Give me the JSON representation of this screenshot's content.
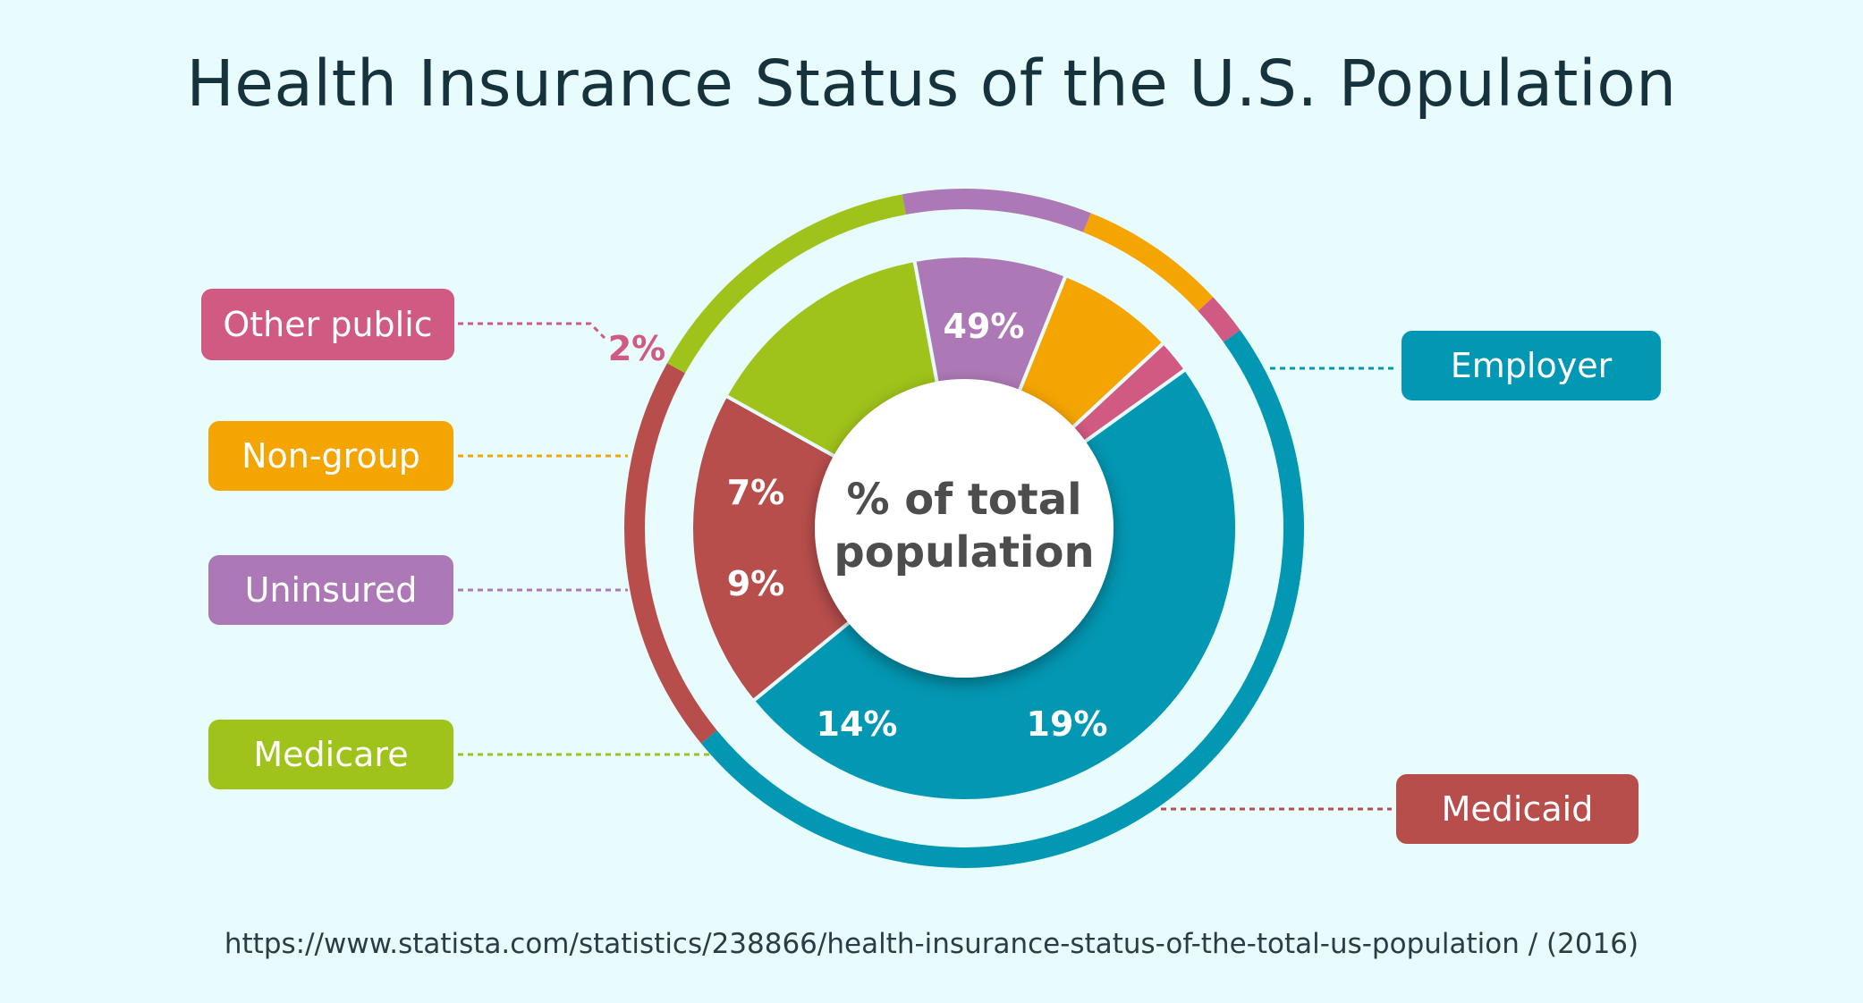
{
  "chart_data": {
    "type": "pie",
    "variant": "donut",
    "title": "Health Insurance Status of the U.S. Population",
    "center_label": [
      "% of total",
      "population"
    ],
    "source": "https://www.statista.com/statistics/238866/health-insurance-status-of-the-total-us-population / (2016)",
    "value_suffix": "%",
    "slices": [
      {
        "label": "Employer",
        "value": 49,
        "color": "#0297b3"
      },
      {
        "label": "Medicaid",
        "value": 19,
        "color": "#b84e4c"
      },
      {
        "label": "Medicare",
        "value": 14,
        "color": "#9fc31a"
      },
      {
        "label": "Uninsured",
        "value": 9,
        "color": "#ad78b6"
      },
      {
        "label": "Non-group",
        "value": 7,
        "color": "#f5a501"
      },
      {
        "label": "Other public",
        "value": 2,
        "color": "#d15a83"
      }
    ]
  }
}
